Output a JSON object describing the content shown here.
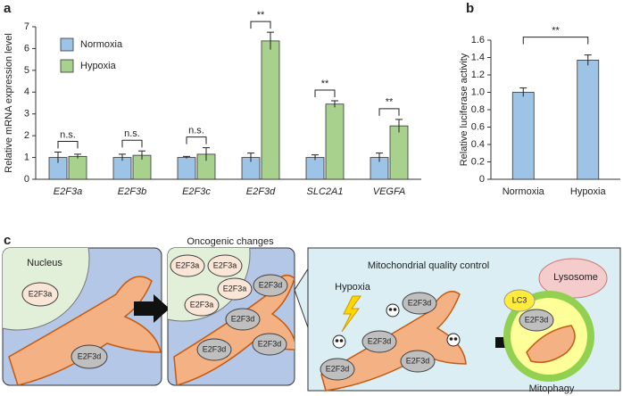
{
  "chart_data": [
    {
      "type": "bar",
      "panel": "a",
      "ylabel": "Relative mRNA expression level",
      "categories": [
        "E2F3a",
        "E2F3b",
        "E2F3c",
        "E2F3d",
        "SLC2A1",
        "VEGFA"
      ],
      "series": [
        {
          "name": "Normoxia",
          "color": "#9dc3e6",
          "values": [
            1,
            1,
            1,
            1,
            1,
            1
          ],
          "errors": [
            0.25,
            0.15,
            0.05,
            0.2,
            0.12,
            0.2
          ]
        },
        {
          "name": "Hypoxia",
          "color": "#a9d18e",
          "values": [
            1.05,
            1.1,
            1.15,
            6.35,
            3.45,
            2.45
          ],
          "errors": [
            0.1,
            0.2,
            0.3,
            0.4,
            0.15,
            0.3
          ]
        }
      ],
      "annotations": [
        "n.s.",
        "n.s.",
        "n.s.",
        "**",
        "**",
        "**"
      ],
      "ylim": [
        0,
        7
      ],
      "yticks": [
        0,
        1,
        2,
        3,
        4,
        5,
        6,
        7
      ],
      "legend": "upper left"
    },
    {
      "type": "bar",
      "panel": "b",
      "ylabel": "Relative luciferase activity",
      "categories": [
        "Normoxia",
        "Hypoxia"
      ],
      "values": [
        1.0,
        1.37
      ],
      "errors": [
        0.05,
        0.06
      ],
      "colors": [
        "#9dc3e6",
        "#9dc3e6"
      ],
      "annotation": "**",
      "ylim": [
        0,
        1.6
      ],
      "yticks": [
        0,
        0.2,
        0.4,
        0.6,
        0.8,
        {
          "value": 1,
          "label": "1.0"
        },
        1.2,
        1.4,
        1.6
      ]
    }
  ],
  "diagram": {
    "panel": "c",
    "title": "Oncogenic changes",
    "nucleus": "Nucleus",
    "factor_a": "E2F3a",
    "factor_d": "E2F3d",
    "box_title": "Mitochondrial quality control",
    "stress": "Hypoxia",
    "lysosome": "Lysosome",
    "marker": "LC3",
    "process": "Mitophagy"
  }
}
